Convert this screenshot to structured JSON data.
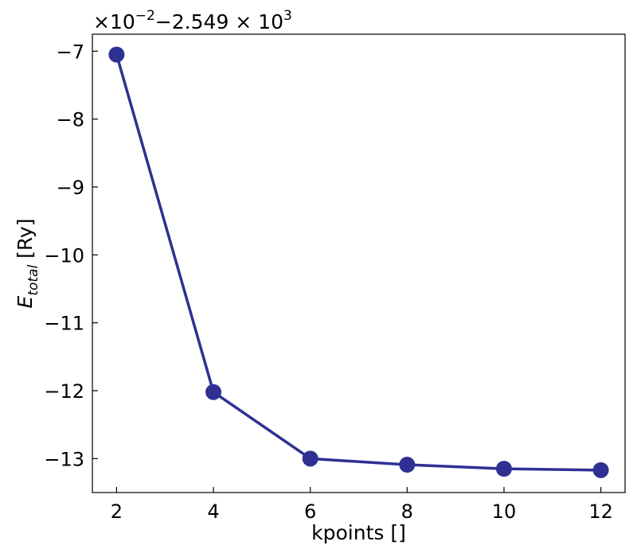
{
  "chart_data": {
    "type": "line",
    "title": "",
    "xlabel": "kpoints []",
    "ylabel": {
      "main": "E",
      "subscript": "total",
      "suffix": " [Ry]"
    },
    "offset_text": {
      "multiplier_base": "×10",
      "multiplier_exponent": "−2",
      "offset_base": "−2.549 × 10",
      "offset_exponent": "3"
    },
    "x": [
      2,
      4,
      6,
      8,
      10,
      12
    ],
    "series": [
      {
        "values": [
          -7.05,
          -12.02,
          -13.0,
          -13.09,
          -13.15,
          -13.17
        ],
        "color": "#2e3192"
      }
    ],
    "xlim": [
      1.5,
      12.5
    ],
    "ylim": [
      -13.5,
      -6.75
    ],
    "xticks": [
      2,
      4,
      6,
      8,
      10,
      12
    ],
    "yticks": [
      -7,
      -8,
      -9,
      -10,
      -11,
      -12,
      -13
    ],
    "xtick_labels": [
      "2",
      "4",
      "6",
      "8",
      "10",
      "12"
    ],
    "ytick_labels": [
      "−7",
      "−8",
      "−9",
      "−10",
      "−11",
      "−12",
      "−13"
    ],
    "grid": false,
    "legend": "none"
  }
}
